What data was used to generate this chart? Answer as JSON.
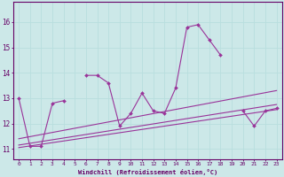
{
  "x": [
    0,
    1,
    2,
    3,
    4,
    5,
    6,
    7,
    8,
    9,
    10,
    11,
    12,
    13,
    14,
    15,
    16,
    17,
    18,
    19,
    20,
    21,
    22,
    23
  ],
  "y_main": [
    13.0,
    11.1,
    11.1,
    12.8,
    12.9,
    null,
    13.9,
    13.9,
    13.6,
    11.9,
    12.4,
    13.2,
    12.5,
    12.4,
    13.4,
    15.8,
    15.9,
    15.3,
    14.7,
    null,
    12.5,
    11.9,
    12.5,
    12.6
  ],
  "trend_lines": [
    {
      "x0": 0,
      "y0": 11.05,
      "x1": 23,
      "y1": 12.55
    },
    {
      "x0": 0,
      "y0": 11.15,
      "x1": 23,
      "y1": 12.75
    },
    {
      "x0": 0,
      "y0": 11.4,
      "x1": 23,
      "y1": 13.3
    }
  ],
  "line_color": "#993399",
  "bg_color": "#cce8e8",
  "grid_color": "#aad4d4",
  "axis_color": "#660066",
  "xlabel": "Windchill (Refroidissement éolien,°C)",
  "ylim": [
    10.6,
    16.8
  ],
  "xlim": [
    -0.5,
    23.5
  ],
  "yticks": [
    11,
    12,
    13,
    14,
    15
  ],
  "ytick_top": 16,
  "xticks": [
    0,
    1,
    2,
    3,
    4,
    5,
    6,
    7,
    8,
    9,
    10,
    11,
    12,
    13,
    14,
    15,
    16,
    17,
    18,
    19,
    20,
    21,
    22,
    23
  ]
}
